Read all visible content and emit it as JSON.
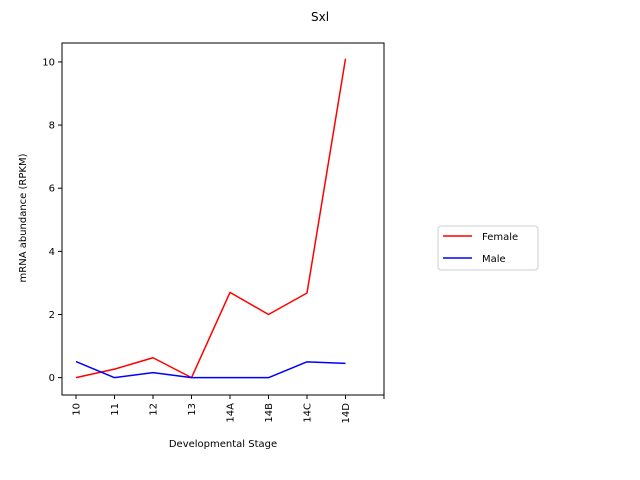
{
  "chart_data": {
    "type": "line",
    "title": "Sxl",
    "xlabel": "Developmental Stage",
    "ylabel": "mRNA abundance (RPKM)",
    "categories": [
      "10",
      "11",
      "12",
      "13",
      "14A",
      "14B",
      "14C",
      "14D"
    ],
    "y_ticks": [
      "0",
      "2",
      "4",
      "6",
      "8",
      "10"
    ],
    "ylim": [
      -0.55,
      10.6
    ],
    "grid": false,
    "legend_position": "right",
    "series": [
      {
        "name": "Female",
        "color": "#ff0000",
        "values": [
          0.0,
          0.27,
          0.63,
          0.0,
          2.7,
          2.0,
          2.68,
          10.1
        ]
      },
      {
        "name": "Male",
        "color": "#0000ff",
        "values": [
          0.51,
          0.0,
          0.16,
          0.0,
          0.0,
          0.0,
          0.5,
          0.45
        ]
      }
    ]
  }
}
